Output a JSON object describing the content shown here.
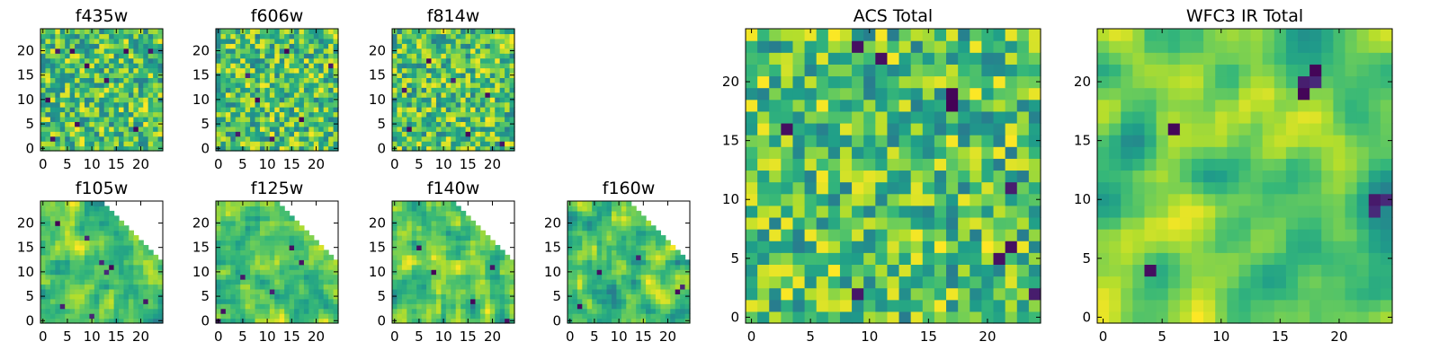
{
  "chart_data": {
    "type": "heatmap",
    "colormap": "viridis",
    "panels": [
      {
        "id": "f435w",
        "title": "f435w",
        "n": 25,
        "xticks": [
          0,
          5,
          10,
          15,
          20
        ],
        "yticks": [
          0,
          5,
          10,
          15,
          20
        ],
        "smooth": 0,
        "mask": "none",
        "seed": 11,
        "dark_spots": [
          [
            3,
            20
          ],
          [
            6,
            20
          ],
          [
            17,
            20
          ],
          [
            22,
            20
          ],
          [
            9,
            17
          ],
          [
            2,
            2
          ],
          [
            13,
            14
          ],
          [
            19,
            4
          ],
          [
            1,
            10
          ],
          [
            7,
            5
          ]
        ]
      },
      {
        "id": "f606w",
        "title": "f606w",
        "n": 25,
        "xticks": [
          0,
          5,
          10,
          15,
          20
        ],
        "yticks": [
          0,
          5,
          10,
          15,
          20
        ],
        "smooth": 0,
        "mask": "none",
        "seed": 23,
        "dark_spots": [
          [
            6,
            15
          ],
          [
            4,
            3
          ],
          [
            11,
            2
          ],
          [
            23,
            17
          ],
          [
            8,
            10
          ],
          [
            17,
            6
          ],
          [
            14,
            20
          ]
        ]
      },
      {
        "id": "f814w",
        "title": "f814w",
        "n": 25,
        "xticks": [
          0,
          5,
          10,
          15,
          20
        ],
        "yticks": [
          0,
          5,
          10,
          15,
          20
        ],
        "smooth": 0,
        "mask": "none",
        "seed": 37,
        "dark_spots": [
          [
            3,
            4
          ],
          [
            15,
            3
          ],
          [
            22,
            1
          ],
          [
            7,
            18
          ],
          [
            12,
            14
          ],
          [
            19,
            11
          ],
          [
            2,
            12
          ]
        ]
      },
      {
        "id": "f105w",
        "title": "f105w",
        "n": 25,
        "xticks": [
          0,
          5,
          10,
          15,
          20
        ],
        "yticks": [
          0,
          5,
          10,
          15,
          20
        ],
        "smooth": 1,
        "mask": "corner",
        "seed": 41,
        "dark_spots": [
          [
            3,
            20
          ],
          [
            12,
            12
          ],
          [
            13,
            10
          ],
          [
            14,
            11
          ],
          [
            9,
            17
          ],
          [
            4,
            3
          ],
          [
            10,
            1
          ],
          [
            21,
            4
          ]
        ]
      },
      {
        "id": "f125w",
        "title": "f125w",
        "n": 25,
        "xticks": [
          0,
          5,
          10,
          15,
          20
        ],
        "yticks": [
          0,
          5,
          10,
          15,
          20
        ],
        "smooth": 1,
        "mask": "corner",
        "seed": 53,
        "dark_spots": [
          [
            15,
            15
          ],
          [
            17,
            12
          ],
          [
            0,
            0
          ],
          [
            1,
            2
          ],
          [
            11,
            6
          ],
          [
            5,
            9
          ]
        ]
      },
      {
        "id": "f140w",
        "title": "f140w",
        "n": 25,
        "xticks": [
          0,
          5,
          10,
          15,
          20
        ],
        "yticks": [
          0,
          5,
          10,
          15,
          20
        ],
        "smooth": 1,
        "mask": "corner",
        "seed": 67,
        "dark_spots": [
          [
            20,
            11
          ],
          [
            8,
            10
          ],
          [
            23,
            0
          ],
          [
            5,
            15
          ],
          [
            16,
            4
          ]
        ]
      },
      {
        "id": "f160w",
        "title": "f160w",
        "n": 25,
        "xticks": [
          0,
          5,
          10,
          15,
          20
        ],
        "yticks": [
          0,
          5,
          10,
          15,
          20
        ],
        "smooth": 1,
        "mask": "corner",
        "seed": 79,
        "dark_spots": [
          [
            22,
            6
          ],
          [
            23,
            7
          ],
          [
            14,
            13
          ],
          [
            6,
            10
          ],
          [
            2,
            3
          ]
        ]
      },
      {
        "id": "acs-total",
        "title": "ACS Total",
        "n": 25,
        "xticks": [
          0,
          5,
          10,
          15,
          20
        ],
        "yticks": [
          0,
          5,
          10,
          15,
          20
        ],
        "smooth": 0,
        "mask": "none",
        "seed": 97,
        "dark_spots": [
          [
            9,
            23
          ],
          [
            17,
            19
          ],
          [
            17,
            18
          ],
          [
            3,
            16
          ],
          [
            22,
            11
          ],
          [
            22,
            6
          ],
          [
            21,
            5
          ],
          [
            9,
            2
          ],
          [
            24,
            2
          ],
          [
            11,
            22
          ]
        ]
      },
      {
        "id": "wfc3-ir-total",
        "title": "WFC3 IR Total",
        "n": 25,
        "xticks": [
          0,
          5,
          10,
          15,
          20
        ],
        "yticks": [
          0,
          5,
          10,
          15,
          20
        ],
        "smooth": 2,
        "mask": "none",
        "seed": 113,
        "dark_spots": [
          [
            17,
            20
          ],
          [
            18,
            20
          ],
          [
            17,
            19
          ],
          [
            18,
            21
          ],
          [
            23,
            10
          ],
          [
            24,
            10
          ],
          [
            23,
            9
          ],
          [
            6,
            16
          ],
          [
            4,
            4
          ]
        ]
      }
    ]
  }
}
